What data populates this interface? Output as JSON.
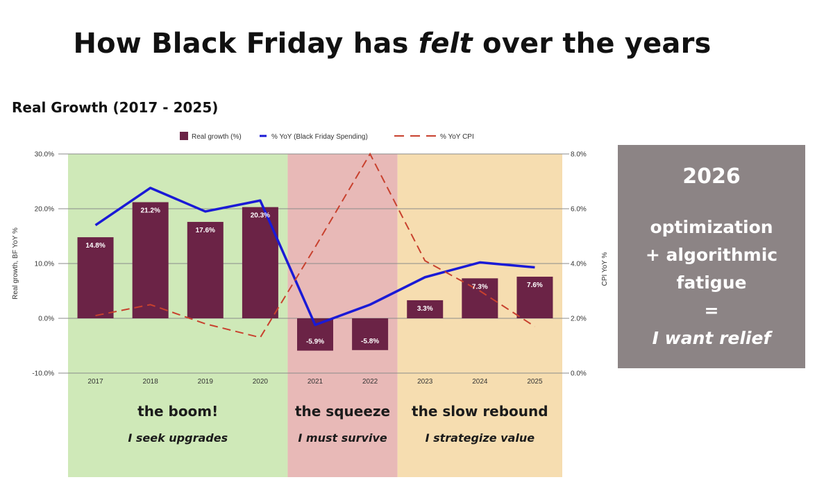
{
  "header": {
    "title_pre": "How Black Friday has ",
    "title_em": "felt",
    "title_post": " over the years"
  },
  "chart_title": "Real Growth (2017 - 2025)",
  "legend": {
    "real_growth": "Real growth (%)",
    "yoy_spending": "% YoY (Black Friday Spending)",
    "yoy_cpi": "% YoY CPI"
  },
  "colors": {
    "bar": "#6b2346",
    "spending_line": "#1a1ad6",
    "cpi_line": "#c8412e",
    "boom_bg": "#cfe9b8",
    "squeeze_bg": "#e8b9b7",
    "rebound_bg": "#f6ddb0",
    "panel_bg": "#8c8485"
  },
  "segments": [
    {
      "title": "the boom!",
      "subtitle": "I seek upgrades",
      "from": "2017",
      "to": "2020"
    },
    {
      "title": "the squeeze",
      "subtitle": "I must survive",
      "from": "2021",
      "to": "2022"
    },
    {
      "title": "the slow rebound",
      "subtitle": "I strategize value",
      "from": "2023",
      "to": "2025"
    }
  ],
  "side_panel": {
    "year": "2026",
    "line1": "optimization",
    "line2": "+ algorithmic",
    "line3": "fatigue",
    "line4": "=",
    "line5": "I want relief"
  },
  "chart_data": {
    "type": "bar",
    "categories": [
      "2017",
      "2018",
      "2019",
      "2020",
      "2021",
      "2022",
      "2023",
      "2024",
      "2025"
    ],
    "series": [
      {
        "name": "Real growth (%)",
        "type": "bar",
        "axis": "left",
        "values": [
          14.8,
          21.2,
          17.6,
          20.3,
          -5.9,
          -5.8,
          3.3,
          7.3,
          7.6
        ],
        "labels": [
          "14.8%",
          "21.2%",
          "17.6%",
          "20.3%",
          "-5.9%",
          "-5.8%",
          "3.3%",
          "7.3%",
          "7.6%"
        ]
      },
      {
        "name": "% YoY (Black Friday Spending)",
        "type": "line",
        "axis": "left",
        "values": [
          17.0,
          23.8,
          19.5,
          21.5,
          -1.2,
          2.5,
          7.5,
          10.2,
          9.3
        ]
      },
      {
        "name": "% YoY CPI",
        "type": "line",
        "dashed": true,
        "axis": "right",
        "values": [
          2.1,
          2.5,
          1.8,
          1.3,
          4.6,
          8.0,
          4.1,
          3.0,
          1.7
        ]
      }
    ],
    "left_axis": {
      "label": "Real growth, BF YoY %",
      "min": -10,
      "max": 30,
      "ticks": [
        "-10.0%",
        "0.0%",
        "10.0%",
        "20.0%",
        "30.0%"
      ]
    },
    "right_axis": {
      "label": "CPI YoY %",
      "min": 0,
      "max": 8,
      "ticks": [
        "0.0%",
        "2.0%",
        "4.0%",
        "6.0%",
        "8.0%"
      ]
    },
    "grid": true,
    "legend_position": "top"
  }
}
